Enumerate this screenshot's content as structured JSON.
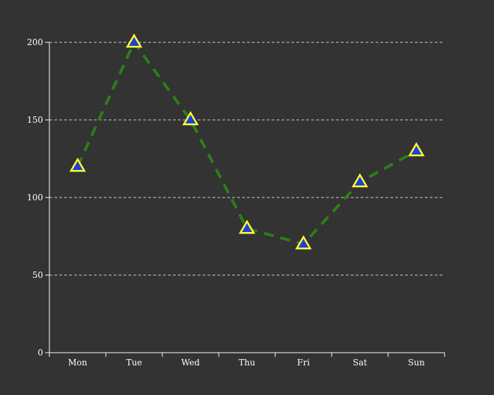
{
  "chart_data": {
    "type": "line",
    "title": "",
    "xlabel": "",
    "ylabel": "",
    "categories": [
      "Mon",
      "Tue",
      "Wed",
      "Thu",
      "Fri",
      "Sat",
      "Sun"
    ],
    "series": [
      {
        "values": [
          120,
          200,
          150,
          80,
          70,
          110,
          130
        ]
      }
    ],
    "ylim": [
      0,
      200
    ],
    "yticks": [
      0,
      50,
      100,
      150,
      200
    ],
    "grid": "horizontal-dashed",
    "legend": "none",
    "colors": {
      "background": "#333333",
      "axis": "#ffffff",
      "grid": "#cccccc",
      "line": "#2e7d1a",
      "marker_fill": "#1f3fd9",
      "marker_stroke": "#ffff33",
      "text": "#ffffff"
    },
    "line_style": "dashed",
    "marker": "triangle"
  }
}
